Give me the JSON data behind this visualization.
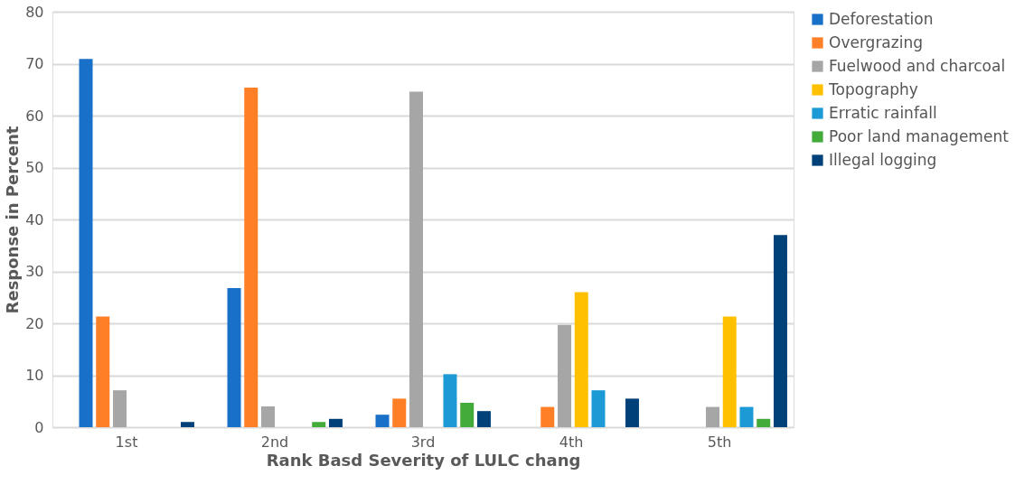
{
  "chart_data": {
    "type": "bar",
    "xlabel": "Rank Basd Severity  of LULC chang",
    "ylabel": "Response in Percent",
    "categories": [
      "1st",
      "2nd",
      "3rd",
      "4th",
      "5th"
    ],
    "series": [
      {
        "name": "Deforestation",
        "color": "#1870c8",
        "values": [
          70.9,
          26.8,
          2.4,
          0,
          0
        ]
      },
      {
        "name": "Overgrazing",
        "color": "#ff7f27",
        "values": [
          21.3,
          65.4,
          5.5,
          3.9,
          0
        ]
      },
      {
        "name": "Fuelwood and charcoal",
        "color": "#a6a6a6",
        "values": [
          7.1,
          4.0,
          64.6,
          19.7,
          3.9
        ]
      },
      {
        "name": "Topography",
        "color": "#ffc000",
        "values": [
          0,
          0,
          0,
          26.0,
          21.3
        ]
      },
      {
        "name": "Erratic rainfall",
        "color": "#1b9ad6",
        "values": [
          0,
          0,
          10.2,
          7.1,
          3.9
        ]
      },
      {
        "name": "Poor land management",
        "color": "#43ab3a",
        "values": [
          0,
          1.0,
          4.7,
          0,
          1.6
        ]
      },
      {
        "name": "Illegal logging",
        "color": "#004179",
        "values": [
          1.0,
          1.6,
          3.1,
          5.5,
          37.0
        ]
      }
    ],
    "ylim": [
      0,
      80
    ],
    "yticks": [
      0,
      10,
      20,
      30,
      40,
      50,
      60,
      70,
      80
    ],
    "grid": "y",
    "legend": "right"
  }
}
